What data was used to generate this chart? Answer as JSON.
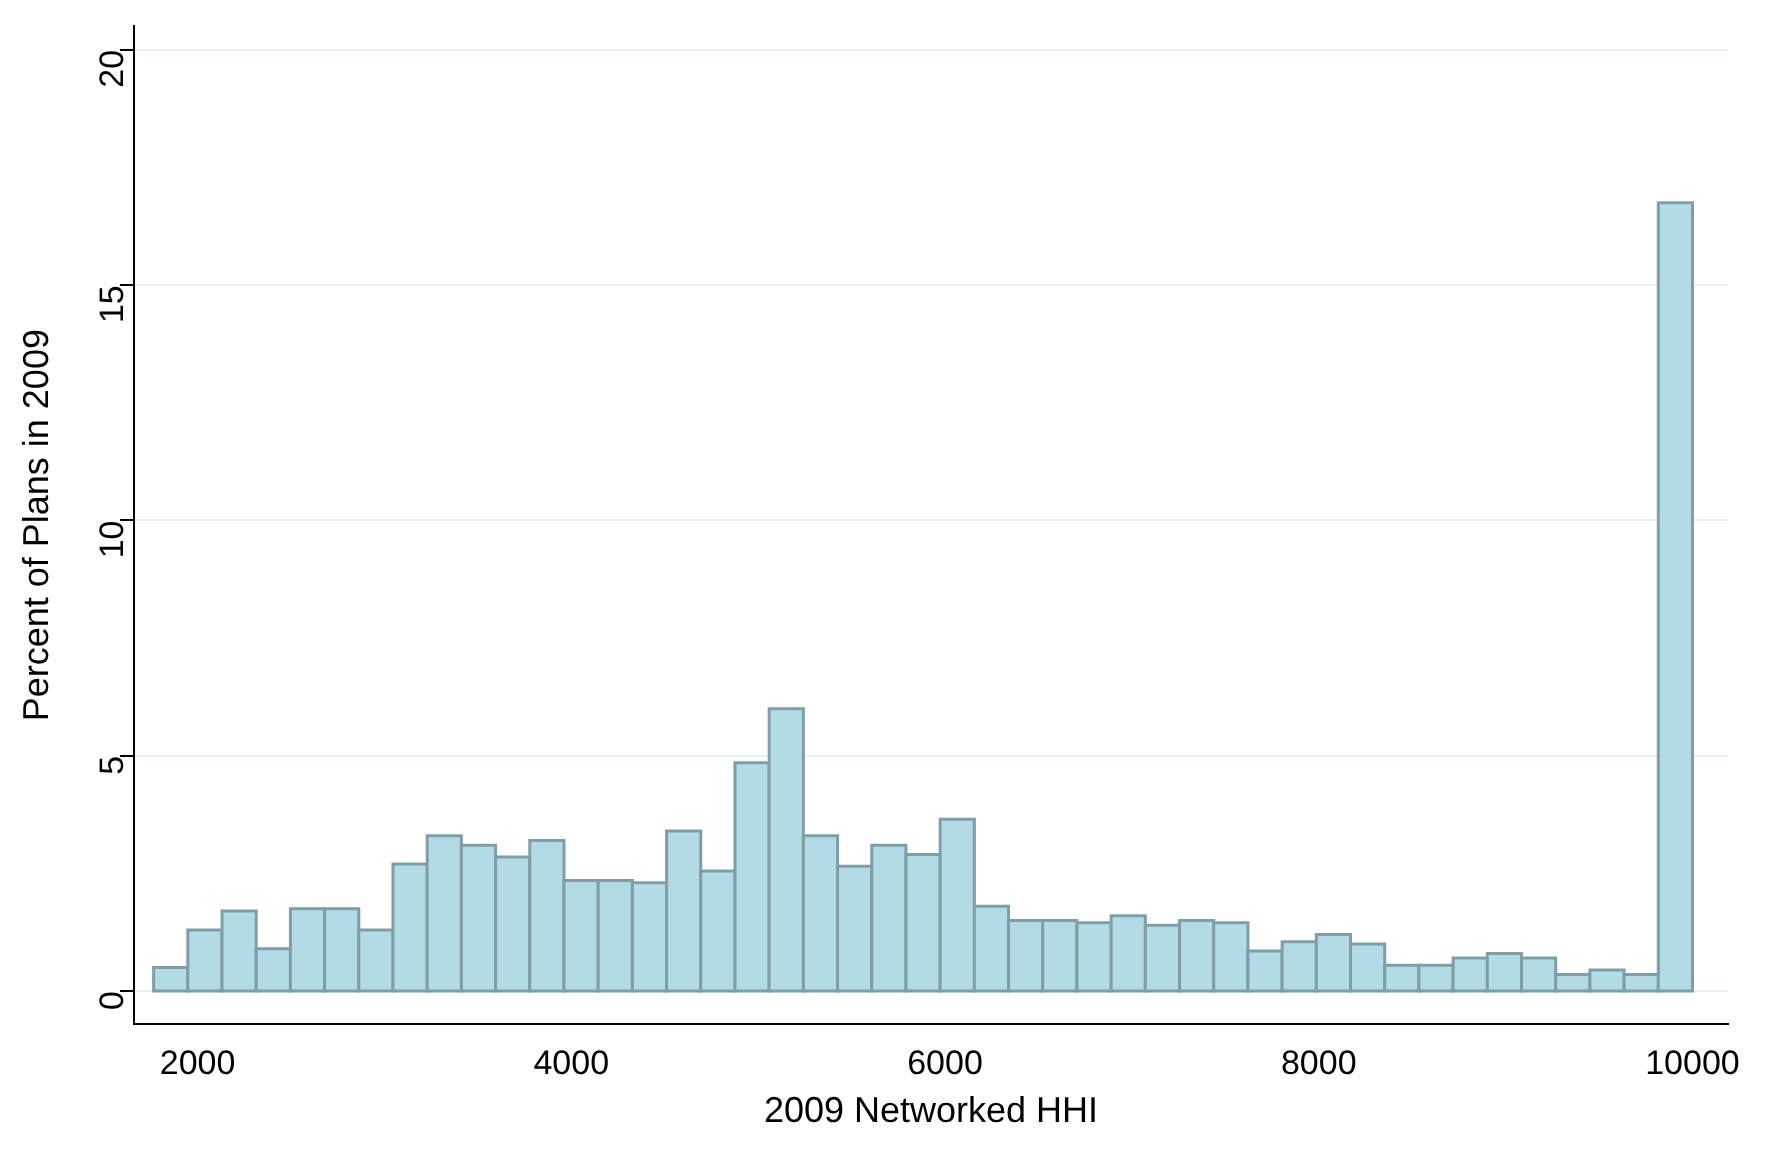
{
  "chart_data": {
    "type": "histogram",
    "xlabel": "2009 Networked HHI",
    "ylabel": "Percent of Plans in 2009",
    "bins": [
      1765,
      1948,
      2131,
      2314,
      2497,
      2680,
      2863,
      3046,
      3229,
      3412,
      3595,
      3778,
      3961,
      4144,
      4327,
      4510,
      4693,
      4876,
      5059,
      5242,
      5425,
      5608,
      5791,
      5974,
      6157,
      6340,
      6523,
      6706,
      6889,
      7072,
      7255,
      7438,
      7621,
      7804,
      7987,
      8170,
      8353,
      8536,
      8719,
      8902,
      9085,
      9268,
      9451,
      9634,
      9817,
      10000
    ],
    "values": [
      0.5,
      1.3,
      1.7,
      0.9,
      1.75,
      1.75,
      1.3,
      2.7,
      3.3,
      3.1,
      2.85,
      3.2,
      2.35,
      2.35,
      2.3,
      3.4,
      2.55,
      4.85,
      6.0,
      3.3,
      2.65,
      3.1,
      2.9,
      3.65,
      1.8,
      1.5,
      1.5,
      1.45,
      1.6,
      1.4,
      1.5,
      1.45,
      0.85,
      1.05,
      1.2,
      1.0,
      0.55,
      0.55,
      0.7,
      0.8,
      0.7,
      0.35,
      0.45,
      0.35,
      16.75
    ],
    "color": "#b3dbe6",
    "xlim": [
      1660,
      10190
    ],
    "xticks": [
      2000,
      4000,
      6000,
      8000,
      10000
    ],
    "ylim": [
      -0.7,
      20.5
    ],
    "yticks": [
      0,
      5,
      10,
      15,
      20
    ],
    "grid": "y",
    "legend": false
  }
}
